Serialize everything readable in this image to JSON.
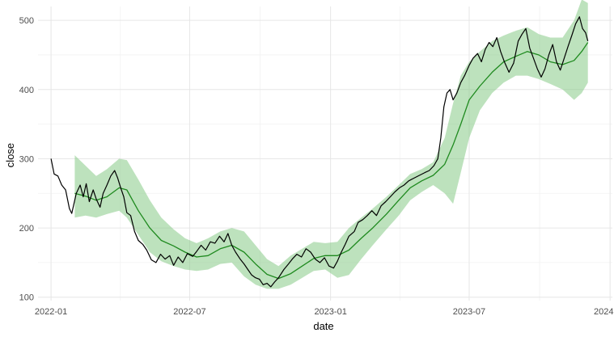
{
  "chart_data": {
    "type": "line",
    "title": "",
    "xlabel": "date",
    "ylabel": "close",
    "x_axis": {
      "type": "date",
      "range": [
        "2021-12-15",
        "2024-01-04"
      ],
      "ticks": [
        {
          "date": "2022-01-01",
          "label": "2022-01"
        },
        {
          "date": "2022-07-01",
          "label": "2022-07"
        },
        {
          "date": "2023-01-01",
          "label": "2023-01"
        },
        {
          "date": "2023-07-01",
          "label": "2023-07"
        },
        {
          "date": "2024-01-01",
          "label": "2024-01"
        }
      ]
    },
    "y_axis": {
      "range": [
        95,
        520
      ],
      "ticks": [
        100,
        200,
        300,
        400,
        500
      ],
      "minor_ticks": [
        150,
        250,
        350,
        450
      ]
    },
    "grid": true,
    "legend": "none",
    "colors": {
      "close_line": "#000000",
      "moving_average": "#1f8a1f",
      "band_fill": "#7cc57c"
    },
    "series": [
      {
        "role": "close",
        "points": [
          [
            "2022-01-01",
            300
          ],
          [
            "2022-01-05",
            278
          ],
          [
            "2022-01-10",
            275
          ],
          [
            "2022-01-15",
            262
          ],
          [
            "2022-01-20",
            255
          ],
          [
            "2022-01-25",
            228
          ],
          [
            "2022-01-28",
            221
          ],
          [
            "2022-02-03",
            250
          ],
          [
            "2022-02-08",
            262
          ],
          [
            "2022-02-12",
            245
          ],
          [
            "2022-02-16",
            264
          ],
          [
            "2022-02-20",
            238
          ],
          [
            "2022-02-25",
            255
          ],
          [
            "2022-03-01",
            242
          ],
          [
            "2022-03-06",
            230
          ],
          [
            "2022-03-10",
            250
          ],
          [
            "2022-03-15",
            262
          ],
          [
            "2022-03-20",
            275
          ],
          [
            "2022-03-25",
            283
          ],
          [
            "2022-03-29",
            272
          ],
          [
            "2022-04-02",
            258
          ],
          [
            "2022-04-06",
            245
          ],
          [
            "2022-04-10",
            222
          ],
          [
            "2022-04-15",
            218
          ],
          [
            "2022-04-20",
            195
          ],
          [
            "2022-04-25",
            182
          ],
          [
            "2022-05-01",
            176
          ],
          [
            "2022-05-06",
            168
          ],
          [
            "2022-05-12",
            154
          ],
          [
            "2022-05-18",
            150
          ],
          [
            "2022-05-24",
            162
          ],
          [
            "2022-05-30",
            155
          ],
          [
            "2022-06-05",
            160
          ],
          [
            "2022-06-10",
            146
          ],
          [
            "2022-06-16",
            158
          ],
          [
            "2022-06-22",
            150
          ],
          [
            "2022-06-28",
            163
          ],
          [
            "2022-07-05",
            159
          ],
          [
            "2022-07-10",
            166
          ],
          [
            "2022-07-16",
            175
          ],
          [
            "2022-07-22",
            168
          ],
          [
            "2022-07-28",
            180
          ],
          [
            "2022-08-03",
            178
          ],
          [
            "2022-08-09",
            188
          ],
          [
            "2022-08-15",
            180
          ],
          [
            "2022-08-20",
            192
          ],
          [
            "2022-08-25",
            175
          ],
          [
            "2022-08-30",
            165
          ],
          [
            "2022-09-05",
            155
          ],
          [
            "2022-09-10",
            148
          ],
          [
            "2022-09-15",
            140
          ],
          [
            "2022-09-20",
            132
          ],
          [
            "2022-09-25",
            128
          ],
          [
            "2022-09-30",
            126
          ],
          [
            "2022-10-05",
            118
          ],
          [
            "2022-10-10",
            120
          ],
          [
            "2022-10-15",
            115
          ],
          [
            "2022-10-20",
            122
          ],
          [
            "2022-10-25",
            128
          ],
          [
            "2022-11-01",
            140
          ],
          [
            "2022-11-07",
            148
          ],
          [
            "2022-11-12",
            155
          ],
          [
            "2022-11-18",
            162
          ],
          [
            "2022-11-24",
            158
          ],
          [
            "2022-11-30",
            170
          ],
          [
            "2022-12-06",
            165
          ],
          [
            "2022-12-12",
            155
          ],
          [
            "2022-12-18",
            150
          ],
          [
            "2022-12-24",
            157
          ],
          [
            "2022-12-30",
            145
          ],
          [
            "2023-01-05",
            142
          ],
          [
            "2023-01-10",
            152
          ],
          [
            "2023-01-15",
            165
          ],
          [
            "2023-01-20",
            176
          ],
          [
            "2023-01-25",
            188
          ],
          [
            "2023-02-01",
            195
          ],
          [
            "2023-02-06",
            208
          ],
          [
            "2023-02-12",
            212
          ],
          [
            "2023-02-18",
            218
          ],
          [
            "2023-02-24",
            225
          ],
          [
            "2023-03-02",
            218
          ],
          [
            "2023-03-08",
            232
          ],
          [
            "2023-03-14",
            238
          ],
          [
            "2023-03-20",
            245
          ],
          [
            "2023-03-26",
            252
          ],
          [
            "2023-04-01",
            258
          ],
          [
            "2023-04-07",
            262
          ],
          [
            "2023-04-13",
            268
          ],
          [
            "2023-04-20",
            272
          ],
          [
            "2023-04-27",
            276
          ],
          [
            "2023-05-04",
            280
          ],
          [
            "2023-05-10",
            283
          ],
          [
            "2023-05-16",
            290
          ],
          [
            "2023-05-21",
            300
          ],
          [
            "2023-05-25",
            330
          ],
          [
            "2023-05-29",
            375
          ],
          [
            "2023-06-02",
            395
          ],
          [
            "2023-06-06",
            400
          ],
          [
            "2023-06-10",
            385
          ],
          [
            "2023-06-15",
            395
          ],
          [
            "2023-06-20",
            410
          ],
          [
            "2023-06-25",
            420
          ],
          [
            "2023-07-01",
            435
          ],
          [
            "2023-07-06",
            445
          ],
          [
            "2023-07-12",
            452
          ],
          [
            "2023-07-17",
            440
          ],
          [
            "2023-07-22",
            458
          ],
          [
            "2023-07-27",
            468
          ],
          [
            "2023-08-01",
            462
          ],
          [
            "2023-08-06",
            475
          ],
          [
            "2023-08-11",
            455
          ],
          [
            "2023-08-16",
            440
          ],
          [
            "2023-08-22",
            425
          ],
          [
            "2023-08-28",
            438
          ],
          [
            "2023-09-03",
            470
          ],
          [
            "2023-09-08",
            480
          ],
          [
            "2023-09-13",
            488
          ],
          [
            "2023-09-18",
            460
          ],
          [
            "2023-09-23",
            445
          ],
          [
            "2023-09-28",
            430
          ],
          [
            "2023-10-03",
            418
          ],
          [
            "2023-10-08",
            430
          ],
          [
            "2023-10-13",
            450
          ],
          [
            "2023-10-18",
            465
          ],
          [
            "2023-10-23",
            440
          ],
          [
            "2023-10-28",
            428
          ],
          [
            "2023-11-02",
            445
          ],
          [
            "2023-11-07",
            462
          ],
          [
            "2023-11-12",
            478
          ],
          [
            "2023-11-17",
            495
          ],
          [
            "2023-11-22",
            505
          ],
          [
            "2023-11-26",
            488
          ],
          [
            "2023-11-30",
            482
          ],
          [
            "2023-12-03",
            470
          ]
        ]
      },
      {
        "role": "moving_average",
        "points": [
          [
            "2022-02-01",
            250
          ],
          [
            "2022-02-15",
            246
          ],
          [
            "2022-03-01",
            240
          ],
          [
            "2022-03-15",
            245
          ],
          [
            "2022-03-31",
            258
          ],
          [
            "2022-04-10",
            255
          ],
          [
            "2022-04-25",
            225
          ],
          [
            "2022-05-10",
            200
          ],
          [
            "2022-05-25",
            182
          ],
          [
            "2022-06-10",
            174
          ],
          [
            "2022-06-25",
            165
          ],
          [
            "2022-07-10",
            158
          ],
          [
            "2022-07-25",
            160
          ],
          [
            "2022-08-10",
            170
          ],
          [
            "2022-08-25",
            175
          ],
          [
            "2022-09-10",
            165
          ],
          [
            "2022-09-25",
            148
          ],
          [
            "2022-10-10",
            133
          ],
          [
            "2022-10-25",
            127
          ],
          [
            "2022-11-10",
            134
          ],
          [
            "2022-11-25",
            145
          ],
          [
            "2022-12-10",
            156
          ],
          [
            "2022-12-25",
            160
          ],
          [
            "2023-01-10",
            160
          ],
          [
            "2023-01-25",
            168
          ],
          [
            "2023-02-10",
            185
          ],
          [
            "2023-02-25",
            200
          ],
          [
            "2023-03-15",
            220
          ],
          [
            "2023-03-31",
            240
          ],
          [
            "2023-04-15",
            258
          ],
          [
            "2023-04-30",
            268
          ],
          [
            "2023-05-15",
            276
          ],
          [
            "2023-05-30",
            292
          ],
          [
            "2023-06-10",
            320
          ],
          [
            "2023-06-20",
            350
          ],
          [
            "2023-07-01",
            385
          ],
          [
            "2023-07-15",
            405
          ],
          [
            "2023-07-31",
            425
          ],
          [
            "2023-08-15",
            440
          ],
          [
            "2023-08-31",
            448
          ],
          [
            "2023-09-15",
            455
          ],
          [
            "2023-09-30",
            450
          ],
          [
            "2023-10-15",
            440
          ],
          [
            "2023-10-31",
            436
          ],
          [
            "2023-11-15",
            442
          ],
          [
            "2023-11-25",
            455
          ],
          [
            "2023-12-03",
            468
          ]
        ]
      },
      {
        "role": "band",
        "points": [
          [
            "2022-02-01",
            215,
            305
          ],
          [
            "2022-02-15",
            218,
            290
          ],
          [
            "2022-03-01",
            215,
            275
          ],
          [
            "2022-03-15",
            220,
            285
          ],
          [
            "2022-03-31",
            225,
            300
          ],
          [
            "2022-04-10",
            215,
            298
          ],
          [
            "2022-04-25",
            190,
            270
          ],
          [
            "2022-05-10",
            165,
            240
          ],
          [
            "2022-05-25",
            152,
            215
          ],
          [
            "2022-06-10",
            145,
            198
          ],
          [
            "2022-06-25",
            140,
            185
          ],
          [
            "2022-07-10",
            138,
            178
          ],
          [
            "2022-07-25",
            140,
            185
          ],
          [
            "2022-08-10",
            148,
            195
          ],
          [
            "2022-08-25",
            150,
            200
          ],
          [
            "2022-09-10",
            130,
            195
          ],
          [
            "2022-09-25",
            118,
            175
          ],
          [
            "2022-10-10",
            112,
            155
          ],
          [
            "2022-10-25",
            112,
            145
          ],
          [
            "2022-11-10",
            118,
            160
          ],
          [
            "2022-11-25",
            128,
            170
          ],
          [
            "2022-12-10",
            138,
            180
          ],
          [
            "2022-12-25",
            140,
            178
          ],
          [
            "2023-01-10",
            128,
            180
          ],
          [
            "2023-01-25",
            132,
            200
          ],
          [
            "2023-02-10",
            155,
            215
          ],
          [
            "2023-02-25",
            175,
            228
          ],
          [
            "2023-03-15",
            198,
            245
          ],
          [
            "2023-03-31",
            218,
            262
          ],
          [
            "2023-04-15",
            240,
            278
          ],
          [
            "2023-04-30",
            252,
            285
          ],
          [
            "2023-05-15",
            262,
            295
          ],
          [
            "2023-05-30",
            250,
            330
          ],
          [
            "2023-06-10",
            235,
            380
          ],
          [
            "2023-06-20",
            280,
            420
          ],
          [
            "2023-07-01",
            330,
            440
          ],
          [
            "2023-07-15",
            370,
            455
          ],
          [
            "2023-07-31",
            395,
            470
          ],
          [
            "2023-08-15",
            410,
            478
          ],
          [
            "2023-08-31",
            420,
            485
          ],
          [
            "2023-09-15",
            420,
            490
          ],
          [
            "2023-09-30",
            415,
            480
          ],
          [
            "2023-10-15",
            408,
            475
          ],
          [
            "2023-10-31",
            400,
            475
          ],
          [
            "2023-11-15",
            385,
            500
          ],
          [
            "2023-11-25",
            395,
            530
          ],
          [
            "2023-12-03",
            410,
            525
          ]
        ]
      }
    ]
  }
}
